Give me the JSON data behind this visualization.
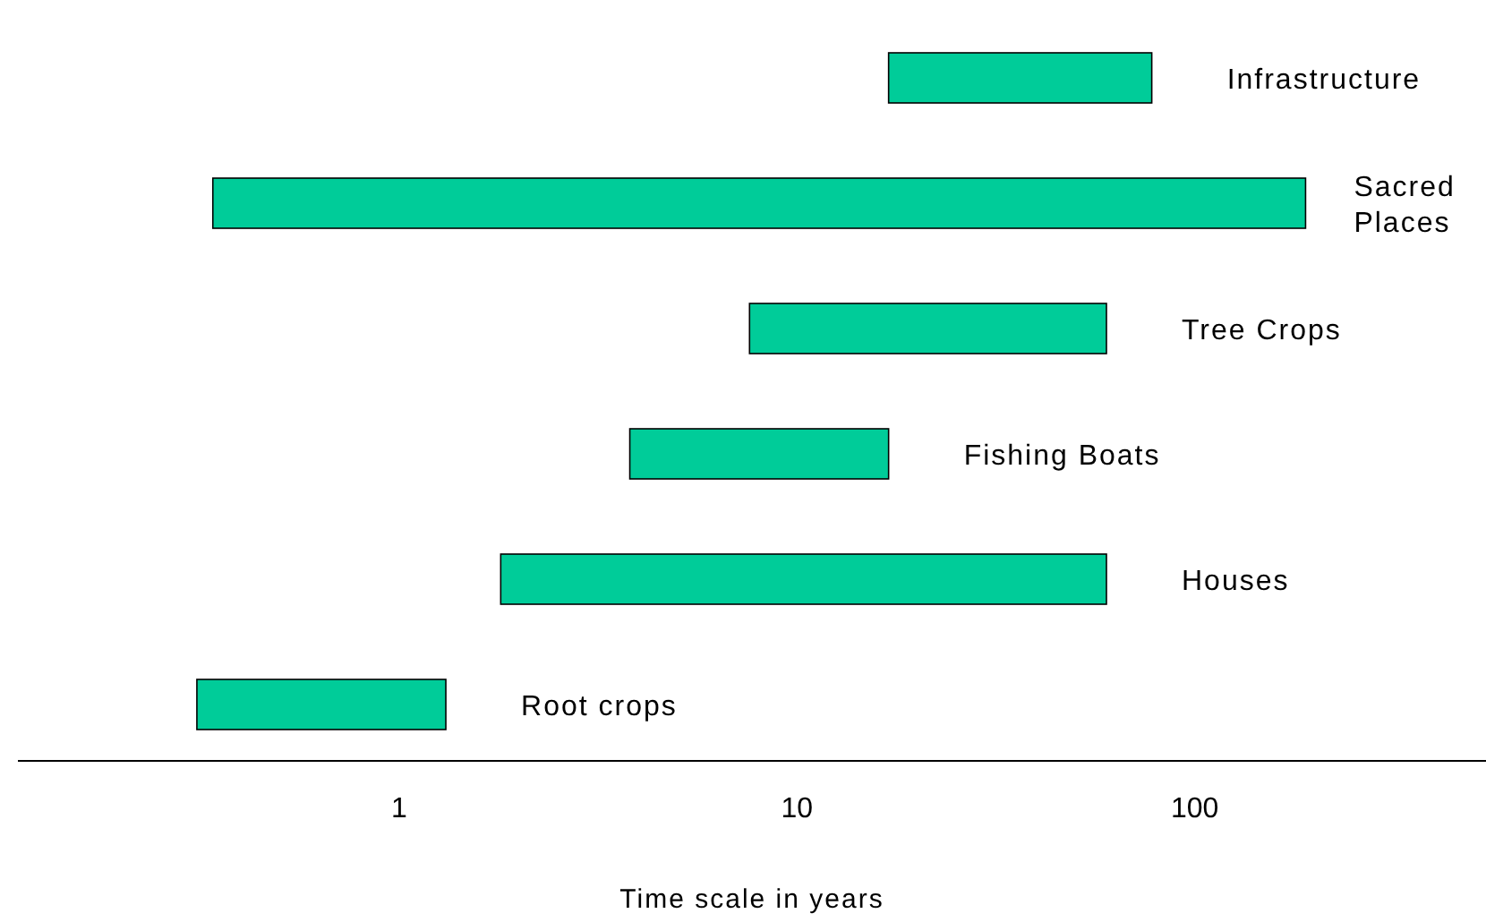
{
  "chart_data": {
    "type": "bar",
    "orientation": "horizontal",
    "log": "x",
    "xlabel": "Time scale in years",
    "categories": [
      "Infrastructure",
      "Sacred Places",
      "Tree Crops",
      "Fishing Boats",
      "Houses",
      "Root crops"
    ],
    "base": [
      17,
      0.34,
      7.6,
      3.8,
      1.8,
      0.31
    ],
    "values": [
      61,
      189.66,
      52.4,
      13.2,
      58.2,
      1.0
    ],
    "color": "#00cc99",
    "xlim": [
      0.11,
      540
    ],
    "xticks": [
      1,
      10,
      100
    ]
  }
}
